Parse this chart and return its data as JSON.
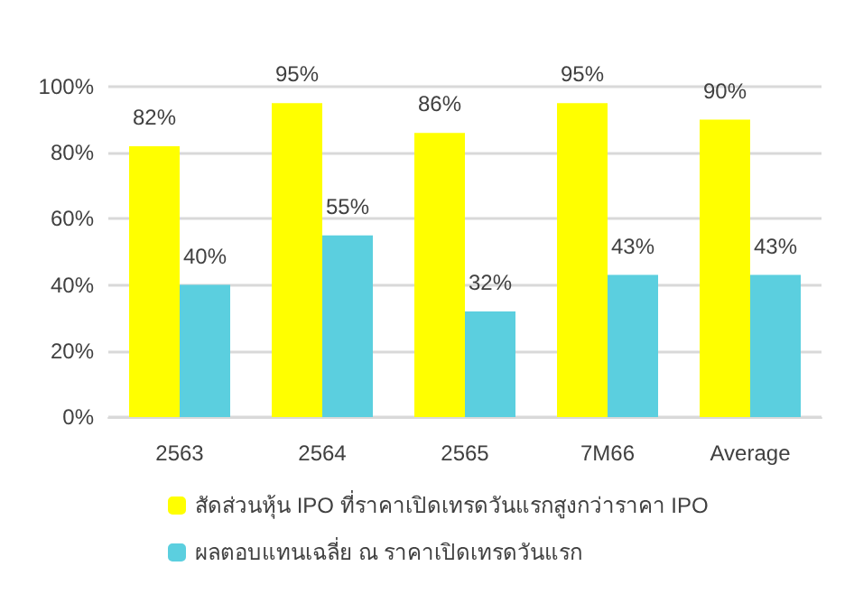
{
  "chart_data": {
    "type": "bar",
    "categories": [
      "2563",
      "2564",
      "2565",
      "7M66",
      "Average"
    ],
    "series": [
      {
        "name": "สัดส่วนหุ้น IPO ที่ราคาเปิดเทรดวันแรกสูงกว่าราคา IPO",
        "color": "#ffff00",
        "values": [
          82,
          95,
          86,
          95,
          90
        ],
        "value_labels": [
          "82%",
          "95%",
          "86%",
          "95%",
          "90%"
        ]
      },
      {
        "name": "ผลตอบแทนเฉลี่ย ณ ราคาเปิดเทรดวันแรก",
        "color": "#5bcfdf",
        "values": [
          40,
          55,
          32,
          43,
          43
        ],
        "value_labels": [
          "40%",
          "55%",
          "32%",
          "43%",
          "43%"
        ]
      }
    ],
    "ylim": [
      0,
      100
    ],
    "yticks": [
      {
        "value": 0,
        "label": "0%"
      },
      {
        "value": 20,
        "label": "20%"
      },
      {
        "value": 40,
        "label": "40%"
      },
      {
        "value": 60,
        "label": "60%"
      },
      {
        "value": 80,
        "label": "80%"
      },
      {
        "value": 100,
        "label": "100%"
      }
    ],
    "grid": "y",
    "legend": "bottom"
  }
}
